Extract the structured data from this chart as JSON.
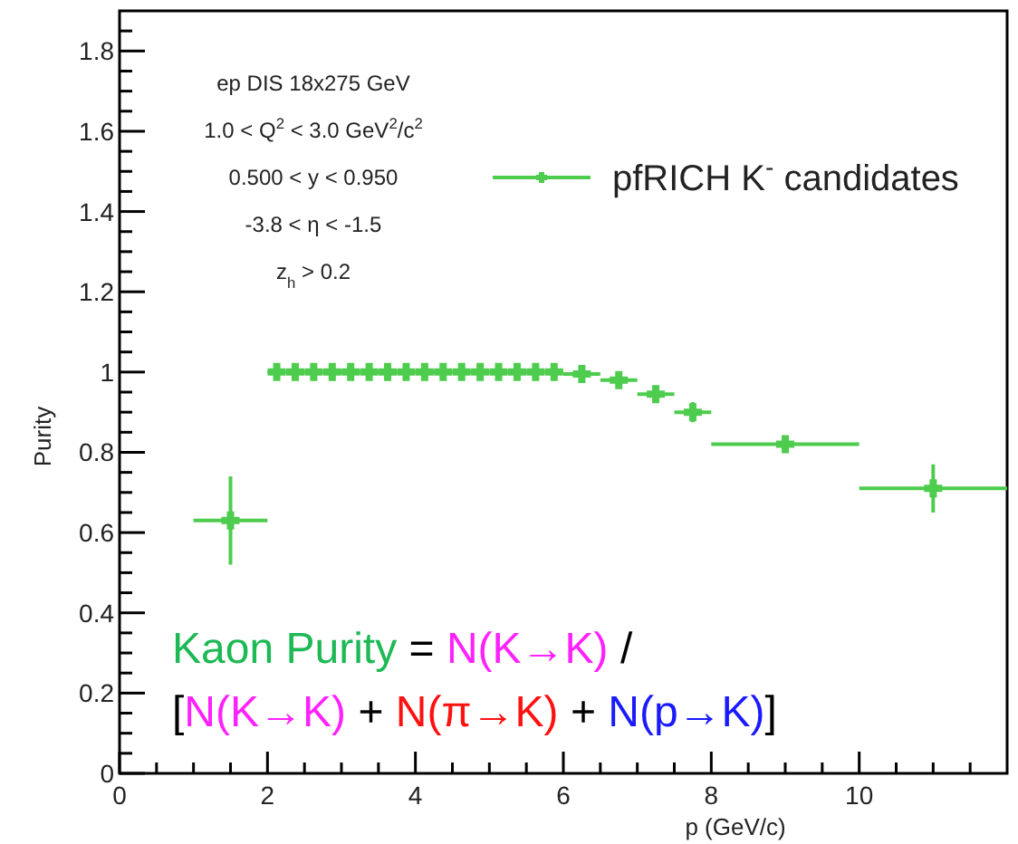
{
  "chart_data": {
    "type": "scatter",
    "xlabel": "p (GeV/c)",
    "ylabel": "Purity",
    "x": [
      1.5,
      2.125,
      2.375,
      2.625,
      2.875,
      3.125,
      3.375,
      3.625,
      3.875,
      4.125,
      4.375,
      4.625,
      4.875,
      5.125,
      5.375,
      5.625,
      5.875,
      6.25,
      6.75,
      7.25,
      7.75,
      9,
      11
    ],
    "series": [
      {
        "name": "pfRICH K$^{-}$ candidates",
        "color": "#4dcc4d",
        "values": [
          0.63,
          1,
          1,
          1,
          1,
          1,
          1,
          1,
          1,
          1,
          1,
          1,
          1,
          1,
          1,
          1,
          1,
          0.995,
          0.98,
          0.945,
          0.9,
          0.82,
          0.71
        ],
        "errors": [
          0.11,
          null,
          null,
          null,
          null,
          null,
          null,
          null,
          null,
          null,
          null,
          null,
          null,
          null,
          null,
          null,
          null,
          0.01,
          0.015,
          0.02,
          0.025,
          0.02,
          0.06
        ],
        "xerrors": [
          0.5,
          0.125,
          0.125,
          0.125,
          0.125,
          0.125,
          0.125,
          0.125,
          0.125,
          0.125,
          0.125,
          0.125,
          0.125,
          0.125,
          0.125,
          0.125,
          0.125,
          0.25,
          0.25,
          0.25,
          0.25,
          1,
          1
        ]
      }
    ],
    "xlim": [
      0,
      12
    ],
    "xticks": [
      0,
      {
        "value": 0.5,
        "label": null
      },
      2,
      {
        "value": 1,
        "label": null
      },
      {
        "value": 1.5,
        "label": null
      },
      {
        "value": 2.5,
        "label": null
      },
      {
        "value": 3,
        "label": null
      },
      {
        "value": 3.5,
        "label": null
      },
      4,
      {
        "value": 4.5,
        "label": null
      },
      {
        "value": 5,
        "label": null
      },
      {
        "value": 5.5,
        "label": null
      },
      6,
      {
        "value": 6.5,
        "label": null
      },
      {
        "value": 7,
        "label": null
      },
      {
        "value": 7.5,
        "label": null
      },
      8,
      {
        "value": 8.5,
        "label": null
      },
      {
        "value": 9,
        "label": null
      },
      {
        "value": 9.5,
        "label": null
      },
      10,
      {
        "value": 10.5,
        "label": null
      },
      {
        "value": 11,
        "label": null
      },
      {
        "value": 11.5,
        "label": null
      }
    ],
    "ylim": [
      0,
      1.9
    ],
    "yticks": [
      0,
      0.2,
      0.4,
      0.6,
      0.8,
      1,
      1.2,
      1.4,
      1.6,
      1.8,
      {
        "value": 0.05,
        "label": null
      },
      {
        "value": 0.1,
        "label": null
      },
      {
        "value": 0.15,
        "label": null
      },
      {
        "value": 0.25,
        "label": null
      },
      {
        "value": 0.3,
        "label": null
      },
      {
        "value": 0.35,
        "label": null
      },
      {
        "value": 0.45,
        "label": null
      },
      {
        "value": 0.5,
        "label": null
      },
      {
        "value": 0.55,
        "label": null
      },
      {
        "value": 0.65,
        "label": null
      },
      {
        "value": 0.7,
        "label": null
      },
      {
        "value": 0.75,
        "label": null
      },
      {
        "value": 0.85,
        "label": null
      },
      {
        "value": 0.9,
        "label": null
      },
      {
        "value": 0.95,
        "label": null
      },
      {
        "value": 1.05,
        "label": null
      },
      {
        "value": 1.1,
        "label": null
      },
      {
        "value": 1.15,
        "label": null
      },
      {
        "value": 1.25,
        "label": null
      },
      {
        "value": 1.3,
        "label": null
      },
      {
        "value": 1.35,
        "label": null
      },
      {
        "value": 1.45,
        "label": null
      },
      {
        "value": 1.5,
        "label": null
      },
      {
        "value": 1.55,
        "label": null
      },
      {
        "value": 1.65,
        "label": null
      },
      {
        "value": 1.7,
        "label": null
      },
      {
        "value": 1.75,
        "label": null
      },
      {
        "value": 1.85,
        "label": null
      }
    ],
    "marker": "cross",
    "legend": "top right",
    "annotations": [
      "ep DIS 18x275 GeV",
      "1.0 < Q$^{2}$ < 3.0 GeV$^{2}$/c$^{2}$",
      "0.500 < y < 0.950",
      "-3.8 < η < -1.5",
      "z$_{h}$ > 0.2",
      "Kaon Purity",
      "=",
      "N(K→K)",
      "/",
      "[",
      "N(K→K)",
      "+",
      "N(π→K)",
      "+",
      "N(p→K)",
      "]"
    ]
  }
}
